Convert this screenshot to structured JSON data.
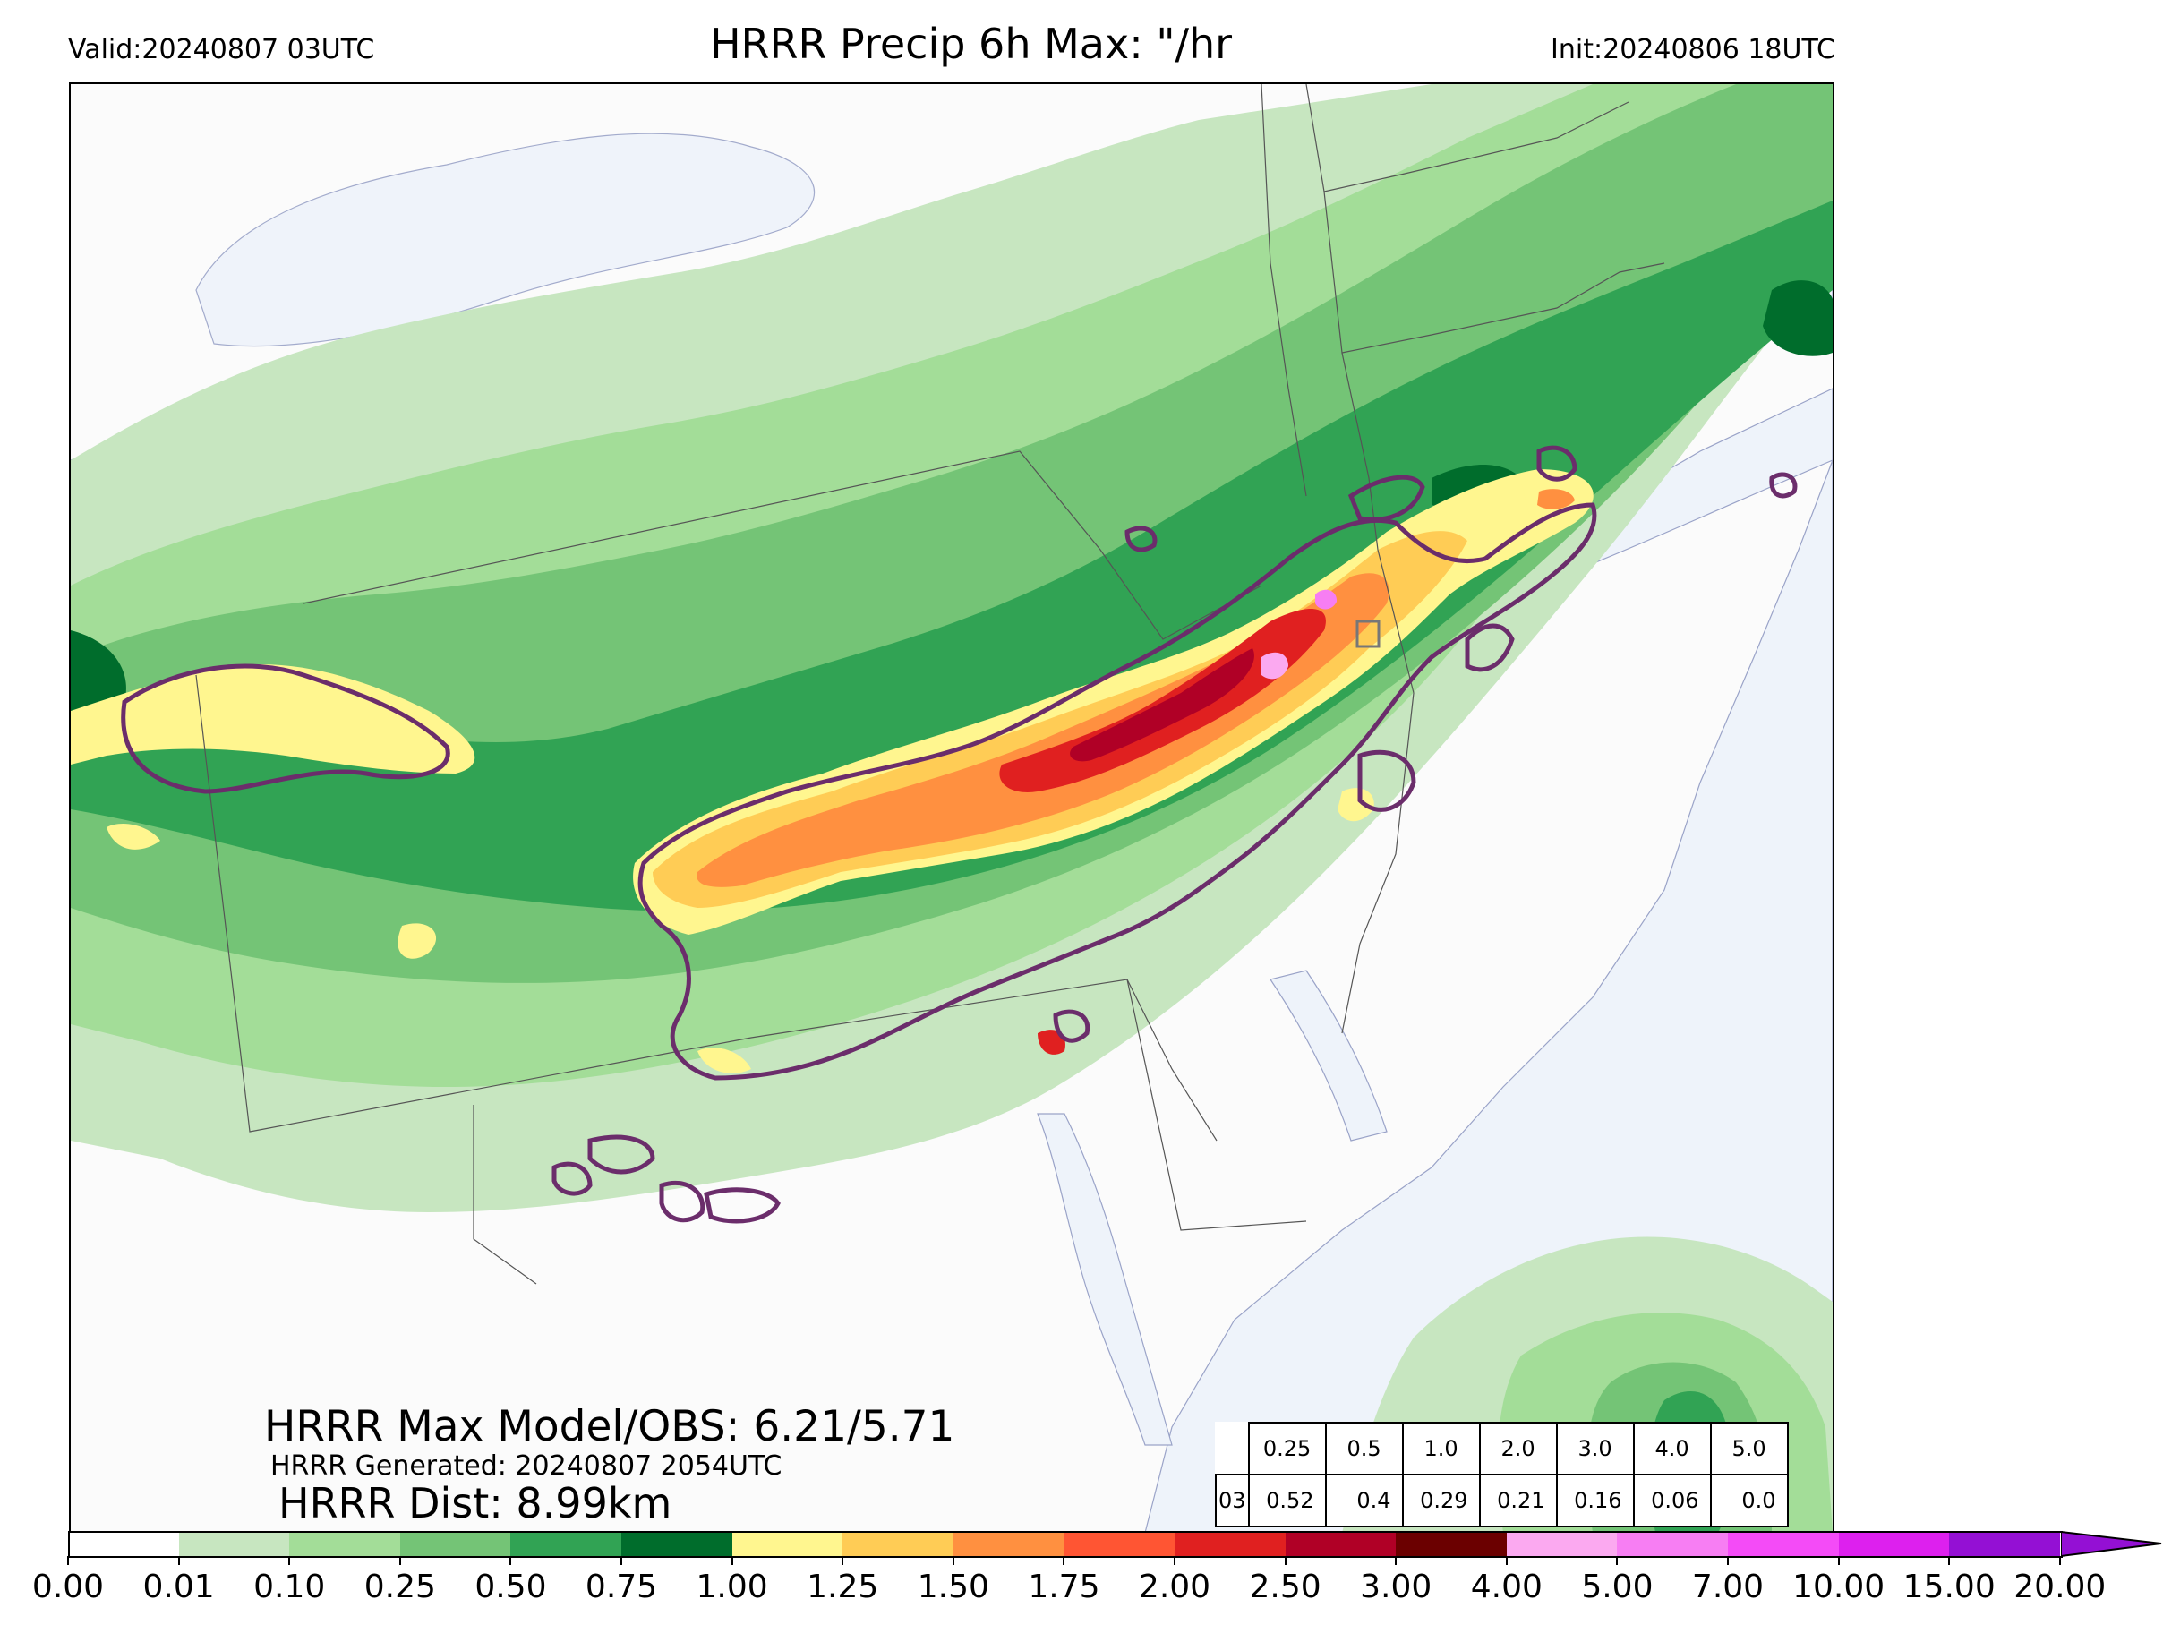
{
  "header": {
    "valid": "Valid:20240807 03UTC",
    "title": "HRRR Precip 6h Max: \"/hr",
    "init": "Init:20240806 18UTC"
  },
  "stats": {
    "max_model_obs": "HRRR Max Model/OBS: 6.21/5.71",
    "generated": "HRRR Generated: 20240807 2054UTC",
    "dist": "HRRR Dist: 8.99km"
  },
  "threshold_table": {
    "thresholds": [
      "0.25",
      "0.5",
      "1.0",
      "2.0",
      "3.0",
      "4.0",
      "5.0"
    ],
    "row_label": "03",
    "values": [
      "0.52",
      "0.4",
      "0.29",
      "0.21",
      "0.16",
      "0.06",
      "0.0"
    ]
  },
  "colorbar": {
    "tick_labels": [
      "0.00",
      "0.01",
      "0.10",
      "0.25",
      "0.50",
      "0.75",
      "1.00",
      "1.25",
      "1.50",
      "1.75",
      "2.00",
      "2.50",
      "3.00",
      "4.00",
      "5.00",
      "7.00",
      "10.00",
      "15.00",
      "20.00"
    ],
    "colors": [
      "#ffffff",
      "#c7e6c0",
      "#a3dd98",
      "#74c476",
      "#31a354",
      "#006d2c",
      "#fff68f",
      "#ffcc55",
      "#ff9040",
      "#ff5533",
      "#e02020",
      "#b00026",
      "#6b0000",
      "#fba9f0",
      "#f77ef3",
      "#f44bf7",
      "#dd20ee",
      "#9410d4"
    ],
    "extend": "max"
  },
  "map": {
    "water_color": "#eef3fa",
    "land_color": "#fbfbfb",
    "obs_contour_color": "#6b2d6b"
  }
}
